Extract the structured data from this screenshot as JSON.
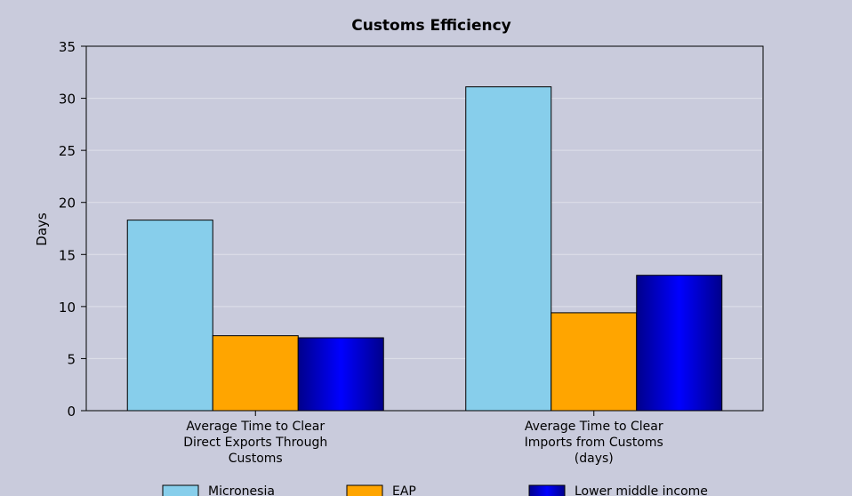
{
  "chart_data": {
    "type": "bar",
    "title": "Customs Efficiency",
    "ylabel": "Days",
    "xlabel": "",
    "ylim": [
      0,
      35
    ],
    "yticks": [
      0,
      5,
      10,
      15,
      20,
      25,
      30,
      35
    ],
    "grid": true,
    "legend_position": "bottom",
    "categories": [
      [
        "Average Time to Clear",
        "Direct Exports Through",
        "Customs"
      ],
      [
        "Average Time to Clear",
        "Imports from Customs",
        "(days)"
      ]
    ],
    "series": [
      {
        "name": "Micronesia",
        "color": "#87ceeb",
        "values": [
          18.3,
          31.1
        ]
      },
      {
        "name": "EAP",
        "color": "#ffa500",
        "values": [
          7.2,
          9.4
        ]
      },
      {
        "name": "Lower middle income",
        "color": "#0000cd",
        "values": [
          7.0,
          13.0
        ]
      }
    ]
  }
}
